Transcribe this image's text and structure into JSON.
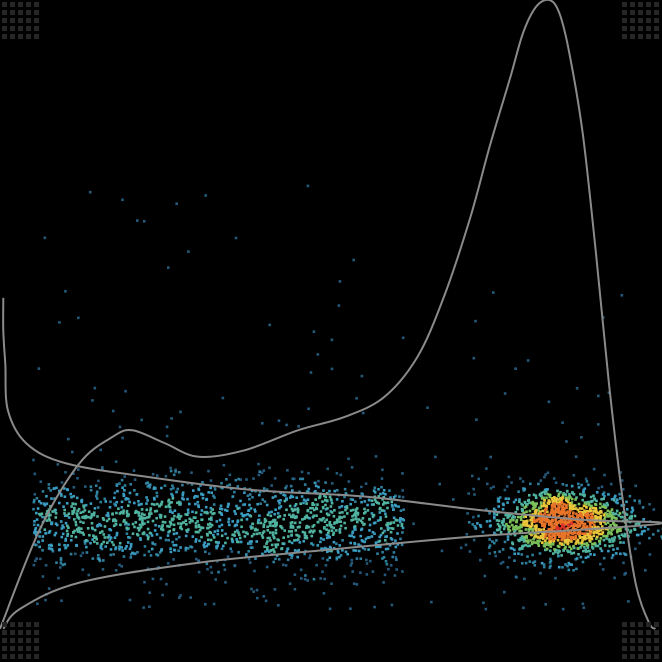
{
  "chart_data": {
    "type": "scatter",
    "title": "",
    "xlabel": "",
    "ylabel": "",
    "grid": false,
    "legend": "none",
    "background": "#000000",
    "xlim": [
      0,
      1
    ],
    "ylim": [
      0,
      1
    ],
    "point_colormap": [
      "#2d6f9a",
      "#3a9cc0",
      "#4fb3a0",
      "#7cc05a",
      "#e8c53a",
      "#e8742a",
      "#d8322a"
    ],
    "density_curve_color": "#8a8a8a",
    "clusters": [
      {
        "name": "",
        "center": [
          0.33,
          0.21
        ],
        "x_spread": 0.28,
        "y_spread": 0.035,
        "count": 1500
      },
      {
        "name": "",
        "center": [
          0.85,
          0.21
        ],
        "x_spread": 0.055,
        "y_spread": 0.028,
        "count": 1300
      }
    ],
    "marginal_density_x": {
      "x": [
        0.0,
        0.06,
        0.12,
        0.17,
        0.2,
        0.25,
        0.3,
        0.37,
        0.45,
        0.52,
        0.58,
        0.63,
        0.67,
        0.71,
        0.74,
        0.77,
        0.79,
        0.81,
        0.83,
        0.845,
        0.86,
        0.88,
        0.9,
        0.92,
        0.94,
        0.96,
        0.98,
        0.99
      ],
      "y": [
        0.05,
        0.2,
        0.3,
        0.34,
        0.35,
        0.33,
        0.31,
        0.32,
        0.35,
        0.37,
        0.4,
        0.46,
        0.55,
        0.67,
        0.78,
        0.88,
        0.95,
        0.99,
        1.0,
        0.98,
        0.92,
        0.8,
        0.62,
        0.42,
        0.25,
        0.12,
        0.06,
        0.05
      ]
    },
    "marginal_density_y": {
      "y": [
        0.55,
        0.5,
        0.45,
        0.38,
        0.33,
        0.3,
        0.28,
        0.26,
        0.25,
        0.23,
        0.215,
        0.21,
        0.2,
        0.19,
        0.17,
        0.15,
        0.12,
        0.08,
        0.05
      ],
      "x": [
        0.005,
        0.005,
        0.008,
        0.012,
        0.04,
        0.1,
        0.22,
        0.38,
        0.55,
        0.72,
        0.88,
        1.0,
        0.88,
        0.72,
        0.5,
        0.3,
        0.12,
        0.03,
        0.005
      ]
    }
  }
}
